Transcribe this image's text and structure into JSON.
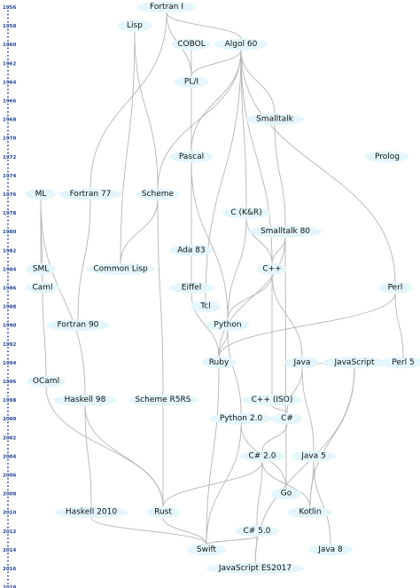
{
  "timeline": {
    "years": [
      "1956",
      "1958",
      "1960",
      "1962",
      "1964",
      "1966",
      "1968",
      "1970",
      "1972",
      "1974",
      "1976",
      "1978",
      "1980",
      "1982",
      "1984",
      "1986",
      "1988",
      "1990",
      "1992",
      "1994",
      "1996",
      "1998",
      "2000",
      "2002",
      "2004",
      "2006",
      "2008",
      "2010",
      "2012",
      "2014",
      "2016",
      "2018"
    ]
  },
  "colors": {
    "node_fill": "#e4f6fb",
    "edge": "#b5b5b5",
    "timeline": "#1f3f8f"
  },
  "nodes": [
    {
      "id": "fortran1",
      "label": "Fortran I"
    },
    {
      "id": "lisp",
      "label": "Lisp"
    },
    {
      "id": "cobol",
      "label": "COBOL"
    },
    {
      "id": "algol60",
      "label": "Algol 60"
    },
    {
      "id": "pli",
      "label": "PL/I"
    },
    {
      "id": "smalltalk",
      "label": "Smalltalk"
    },
    {
      "id": "pascal",
      "label": "Pascal"
    },
    {
      "id": "prolog",
      "label": "Prolog"
    },
    {
      "id": "scheme",
      "label": "Scheme"
    },
    {
      "id": "ml",
      "label": "ML"
    },
    {
      "id": "fortran77",
      "label": "Fortran 77"
    },
    {
      "id": "ckr",
      "label": "C (K&R)"
    },
    {
      "id": "smalltalk80",
      "label": "Smalltalk 80"
    },
    {
      "id": "ada83",
      "label": "Ada 83"
    },
    {
      "id": "sml",
      "label": "SML"
    },
    {
      "id": "commonlisp",
      "label": "Common Lisp"
    },
    {
      "id": "cpp",
      "label": "C++"
    },
    {
      "id": "caml",
      "label": "Caml"
    },
    {
      "id": "eiffel",
      "label": "Eiffel"
    },
    {
      "id": "perl",
      "label": "Perl"
    },
    {
      "id": "tcl",
      "label": "Tcl"
    },
    {
      "id": "fortran90",
      "label": "Fortran 90"
    },
    {
      "id": "python",
      "label": "Python"
    },
    {
      "id": "ruby",
      "label": "Ruby"
    },
    {
      "id": "java",
      "label": "Java"
    },
    {
      "id": "javascript",
      "label": "JavaScript"
    },
    {
      "id": "perl5",
      "label": "Perl 5"
    },
    {
      "id": "ocaml",
      "label": "OCaml"
    },
    {
      "id": "haskell98",
      "label": "Haskell 98"
    },
    {
      "id": "schemer5rs",
      "label": "Scheme R5RS"
    },
    {
      "id": "cppiso",
      "label": "C++ (ISO)"
    },
    {
      "id": "python2",
      "label": "Python 2.0"
    },
    {
      "id": "csharp",
      "label": "C#"
    },
    {
      "id": "csharp2",
      "label": "C# 2.0"
    },
    {
      "id": "java5",
      "label": "Java 5"
    },
    {
      "id": "go",
      "label": "Go"
    },
    {
      "id": "haskell2010",
      "label": "Haskell 2010"
    },
    {
      "id": "rust",
      "label": "Rust"
    },
    {
      "id": "kotlin",
      "label": "Kotlin"
    },
    {
      "id": "csharp5",
      "label": "C# 5.0"
    },
    {
      "id": "swift",
      "label": "Swift"
    },
    {
      "id": "java8",
      "label": "Java 8"
    },
    {
      "id": "es2017",
      "label": "JavaScript ES2017"
    }
  ],
  "edges": [
    [
      "fortran1",
      "algol60"
    ],
    [
      "fortran1",
      "pli"
    ],
    [
      "fortran1",
      "fortran77"
    ],
    [
      "cobol",
      "pli"
    ],
    [
      "algol60",
      "pli"
    ],
    [
      "algol60",
      "smalltalk"
    ],
    [
      "algol60",
      "pascal"
    ],
    [
      "algol60",
      "scheme"
    ],
    [
      "algol60",
      "ckr"
    ],
    [
      "algol60",
      "cpp"
    ],
    [
      "algol60",
      "perl"
    ],
    [
      "algol60",
      "tcl"
    ],
    [
      "lisp",
      "scheme"
    ],
    [
      "lisp",
      "commonlisp"
    ],
    [
      "pli",
      "pascal"
    ],
    [
      "pascal",
      "ada83"
    ],
    [
      "pascal",
      "python"
    ],
    [
      "smalltalk",
      "smalltalk80"
    ],
    [
      "scheme",
      "commonlisp"
    ],
    [
      "scheme",
      "schemer5rs"
    ],
    [
      "ml",
      "sml"
    ],
    [
      "ml",
      "caml"
    ],
    [
      "ml",
      "haskell98"
    ],
    [
      "fortran77",
      "fortran90"
    ],
    [
      "ckr",
      "cpp"
    ],
    [
      "ckr",
      "python"
    ],
    [
      "smalltalk80",
      "cpp"
    ],
    [
      "smalltalk80",
      "ruby"
    ],
    [
      "smalltalk80",
      "go"
    ],
    [
      "ada83",
      "eiffel"
    ],
    [
      "caml",
      "ocaml"
    ],
    [
      "eiffel",
      "ruby"
    ],
    [
      "perl",
      "ruby"
    ],
    [
      "perl",
      "perl5"
    ],
    [
      "cpp",
      "python"
    ],
    [
      "cpp",
      "java"
    ],
    [
      "cpp",
      "cppiso"
    ],
    [
      "python",
      "ruby"
    ],
    [
      "python",
      "python2"
    ],
    [
      "java",
      "javascript"
    ],
    [
      "java",
      "csharp"
    ],
    [
      "java",
      "java5"
    ],
    [
      "ruby",
      "swift"
    ],
    [
      "javascript",
      "kotlin"
    ],
    [
      "javascript",
      "es2017"
    ],
    [
      "ocaml",
      "rust"
    ],
    [
      "haskell98",
      "haskell2010"
    ],
    [
      "haskell98",
      "rust"
    ],
    [
      "schemer5rs",
      "rust"
    ],
    [
      "cppiso",
      "csharp"
    ],
    [
      "python2",
      "go"
    ],
    [
      "python2",
      "swift"
    ],
    [
      "csharp",
      "csharp2"
    ],
    [
      "csharp2",
      "rust"
    ],
    [
      "csharp2",
      "kotlin"
    ],
    [
      "csharp2",
      "csharp5"
    ],
    [
      "java5",
      "kotlin"
    ],
    [
      "java5",
      "java8"
    ],
    [
      "haskell2010",
      "swift"
    ],
    [
      "rust",
      "swift"
    ],
    [
      "csharp5",
      "swift"
    ],
    [
      "csharp5",
      "es2017"
    ]
  ]
}
